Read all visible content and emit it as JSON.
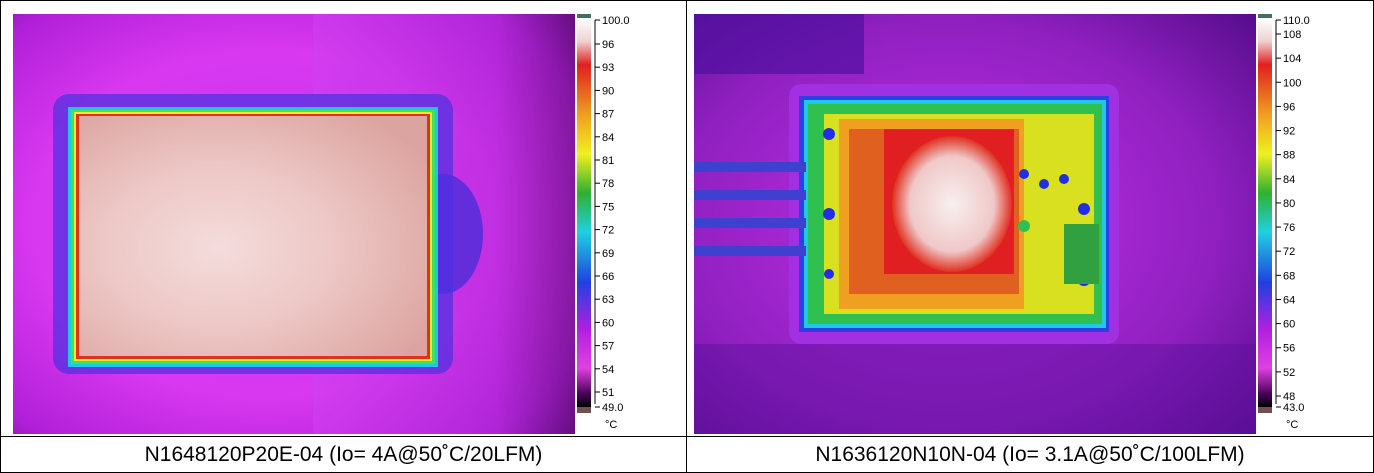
{
  "images": [
    {
      "caption": "N1648120P20E-04 (Io= 4A@50˚C/20LFM)",
      "scale": {
        "top": "100.0",
        "ticks": [
          "96",
          "93",
          "90",
          "87",
          "84",
          "81",
          "78",
          "75",
          "72",
          "69",
          "66",
          "63",
          "60",
          "57",
          "54",
          "51"
        ],
        "bottom": "49.0",
        "unit": "°C"
      }
    },
    {
      "caption": "N1636120N10N-04 (Io= 3.1A@50˚C/100LFM)",
      "scale": {
        "top": "110.0",
        "ticks": [
          "108",
          "104",
          "100",
          "96",
          "92",
          "88",
          "84",
          "80",
          "76",
          "72",
          "68",
          "64",
          "60",
          "56",
          "52",
          "48"
        ],
        "bottom": "43.0",
        "unit": "°C"
      }
    }
  ],
  "colors": {
    "border": "#000000",
    "background_magenta": "#e040f0",
    "hot_pink": "#f0c0c0",
    "cold_purple": "#4a10a0"
  }
}
